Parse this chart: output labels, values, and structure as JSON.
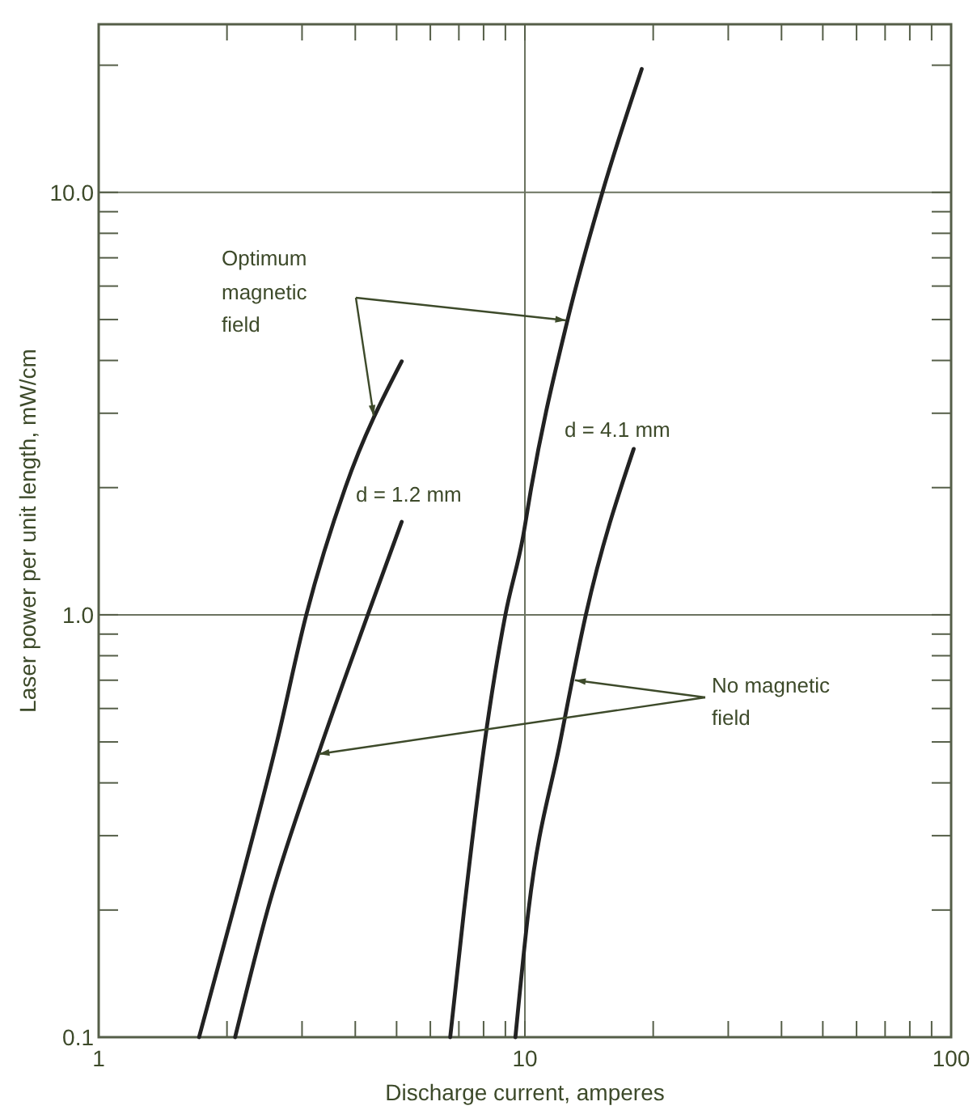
{
  "chart_data": {
    "type": "line",
    "xlabel": "Discharge current, amperes",
    "ylabel": "Laser power per unit length, mW/cm",
    "log": "xy",
    "grid": true,
    "marker": "none",
    "line_style": "solid",
    "xlim": [
      1,
      100
    ],
    "ylim": [
      0.1,
      25
    ],
    "xticks": [
      1,
      {
        "value": 2,
        "label": null
      },
      {
        "value": 3,
        "label": null
      },
      {
        "value": 4,
        "label": null
      },
      {
        "value": 5,
        "label": null
      },
      {
        "value": 6,
        "label": null
      },
      {
        "value": 7,
        "label": null
      },
      {
        "value": 8,
        "label": null
      },
      {
        "value": 9,
        "label": null
      },
      10,
      {
        "value": 20,
        "label": null
      },
      {
        "value": 30,
        "label": null
      },
      {
        "value": 40,
        "label": null
      },
      {
        "value": 50,
        "label": null
      },
      {
        "value": 60,
        "label": null
      },
      {
        "value": 70,
        "label": null
      },
      {
        "value": 80,
        "label": null
      },
      {
        "value": 90,
        "label": null
      },
      100
    ],
    "yticks": [
      0.1,
      {
        "value": 0.2,
        "label": null
      },
      {
        "value": 0.3,
        "label": null
      },
      {
        "value": 0.4,
        "label": null
      },
      {
        "value": 0.5,
        "label": null
      },
      {
        "value": 0.6,
        "label": null
      },
      {
        "value": 0.7,
        "label": null
      },
      {
        "value": 0.8,
        "label": null
      },
      {
        "value": 0.9,
        "label": null
      },
      {
        "value": 1,
        "label": "1.0"
      },
      {
        "value": 2,
        "label": null
      },
      {
        "value": 3,
        "label": null
      },
      {
        "value": 4,
        "label": null
      },
      {
        "value": 5,
        "label": null
      },
      {
        "value": 6,
        "label": null
      },
      {
        "value": 7,
        "label": null
      },
      {
        "value": 8,
        "label": null
      },
      {
        "value": 9,
        "label": null
      },
      {
        "value": 10,
        "label": "10.0"
      },
      {
        "value": 20,
        "label": null
      }
    ],
    "series": [
      {
        "color": "#222222",
        "x": [
          1.72,
          2.07,
          2.62,
          3.07,
          3.79,
          5.14
        ],
        "values": [
          0.1,
          0.2,
          0.5,
          1,
          2,
          3.98
        ]
      },
      {
        "color": "#222222",
        "x": [
          2.09,
          2.49,
          3.35,
          4.28,
          5.14
        ],
        "values": [
          0.1,
          0.2,
          0.5,
          1,
          1.66
        ]
      },
      {
        "color": "#222222",
        "x": [
          6.68,
          7.2,
          8.05,
          9.0,
          9.9,
          10.35,
          12.6,
          15.2,
          18.8
        ],
        "values": [
          0.1,
          0.2,
          0.5,
          1,
          1.53,
          2,
          5,
          10,
          19.6
        ]
      },
      {
        "color": "#222222",
        "x": [
          9.5,
          10.2,
          12.1,
          13.9,
          18.0
        ],
        "values": [
          0.1,
          0.2,
          0.5,
          1,
          2.47
        ]
      }
    ],
    "annotations": [
      "Optimum magnetic field",
      "d = 1.2 mm",
      "d = 4.1 mm",
      {
        "text": "No magnetic field",
        "x": 13.1,
        "y": 0.7
      }
    ]
  }
}
